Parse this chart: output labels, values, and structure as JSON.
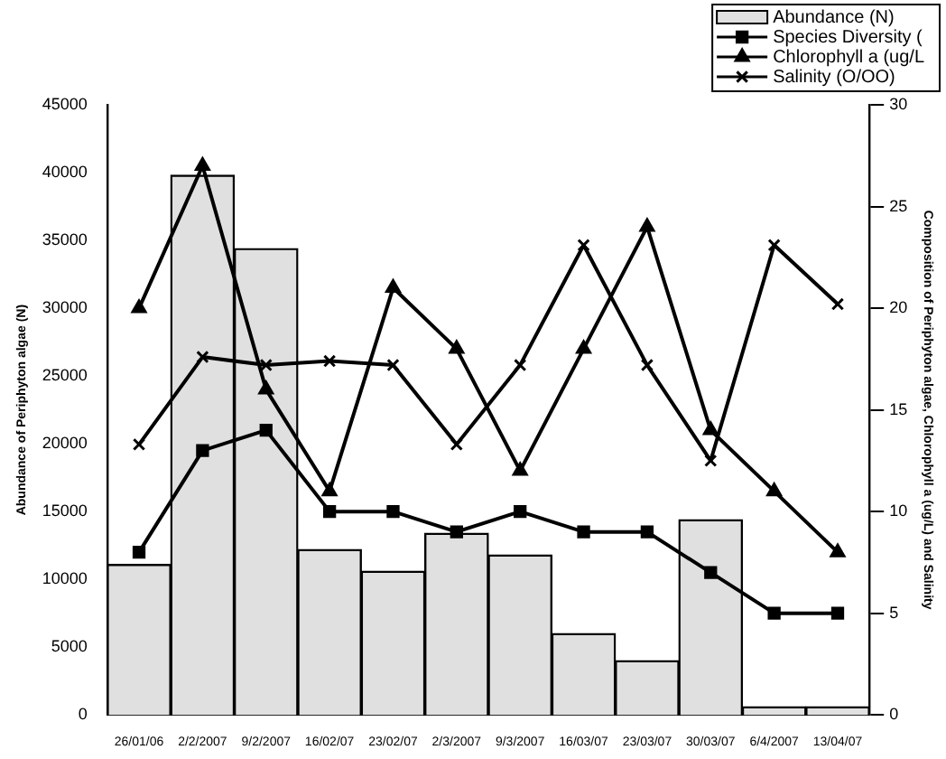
{
  "chart_data": {
    "type": "bar",
    "categories": [
      "26/01/06",
      "2/2/2007",
      "9/2/2007",
      "16/02/07",
      "23/02/07",
      "2/3/2007",
      "9/3/2007",
      "16/03/07",
      "23/03/07",
      "30/03/07",
      "6/4/2007",
      "13/04/07"
    ],
    "series": [
      {
        "name": "Abundance (N)",
        "color": "#e0e0e0",
        "values": [
          11100,
          39800,
          34400,
          12200,
          10600,
          13400,
          11800,
          6000,
          4000,
          14400,
          600,
          600
        ]
      },
      {
        "name": "Species Diversity (",
        "type": "line",
        "axis": "y2",
        "marker": "square",
        "color": "#000000",
        "values": [
          8,
          13,
          14,
          10,
          10,
          9,
          10,
          9,
          9,
          7,
          5,
          5
        ]
      },
      {
        "name": "Chlorophyll a (ug/L",
        "type": "line",
        "axis": "y2",
        "marker": "triangle",
        "color": "#000000",
        "values": [
          20,
          27,
          16,
          11,
          21,
          18,
          12,
          18,
          24,
          14,
          11,
          8
        ]
      },
      {
        "name": "Salinity (O/OO)",
        "type": "line",
        "axis": "y2",
        "marker": "cross",
        "color": "#000000",
        "values": [
          13.3,
          17.6,
          17.2,
          17.4,
          17.2,
          13.3,
          17.2,
          23.1,
          17.2,
          12.5,
          23.1,
          20.2
        ]
      }
    ],
    "ylabel": "Abundance of Periphyton algae (N)",
    "y2label": "Composition of Periphyton algae, Chlorophyll a (ug/L) and Salinity",
    "ylim": [
      0,
      45000
    ],
    "yticks": [
      0,
      5000,
      10000,
      15000,
      20000,
      25000,
      30000,
      35000,
      40000,
      45000
    ],
    "y2lim": [
      0,
      30
    ],
    "y2ticks": [
      0,
      5,
      10,
      15,
      20,
      25,
      30
    ],
    "grid": false,
    "legend": "top right"
  }
}
